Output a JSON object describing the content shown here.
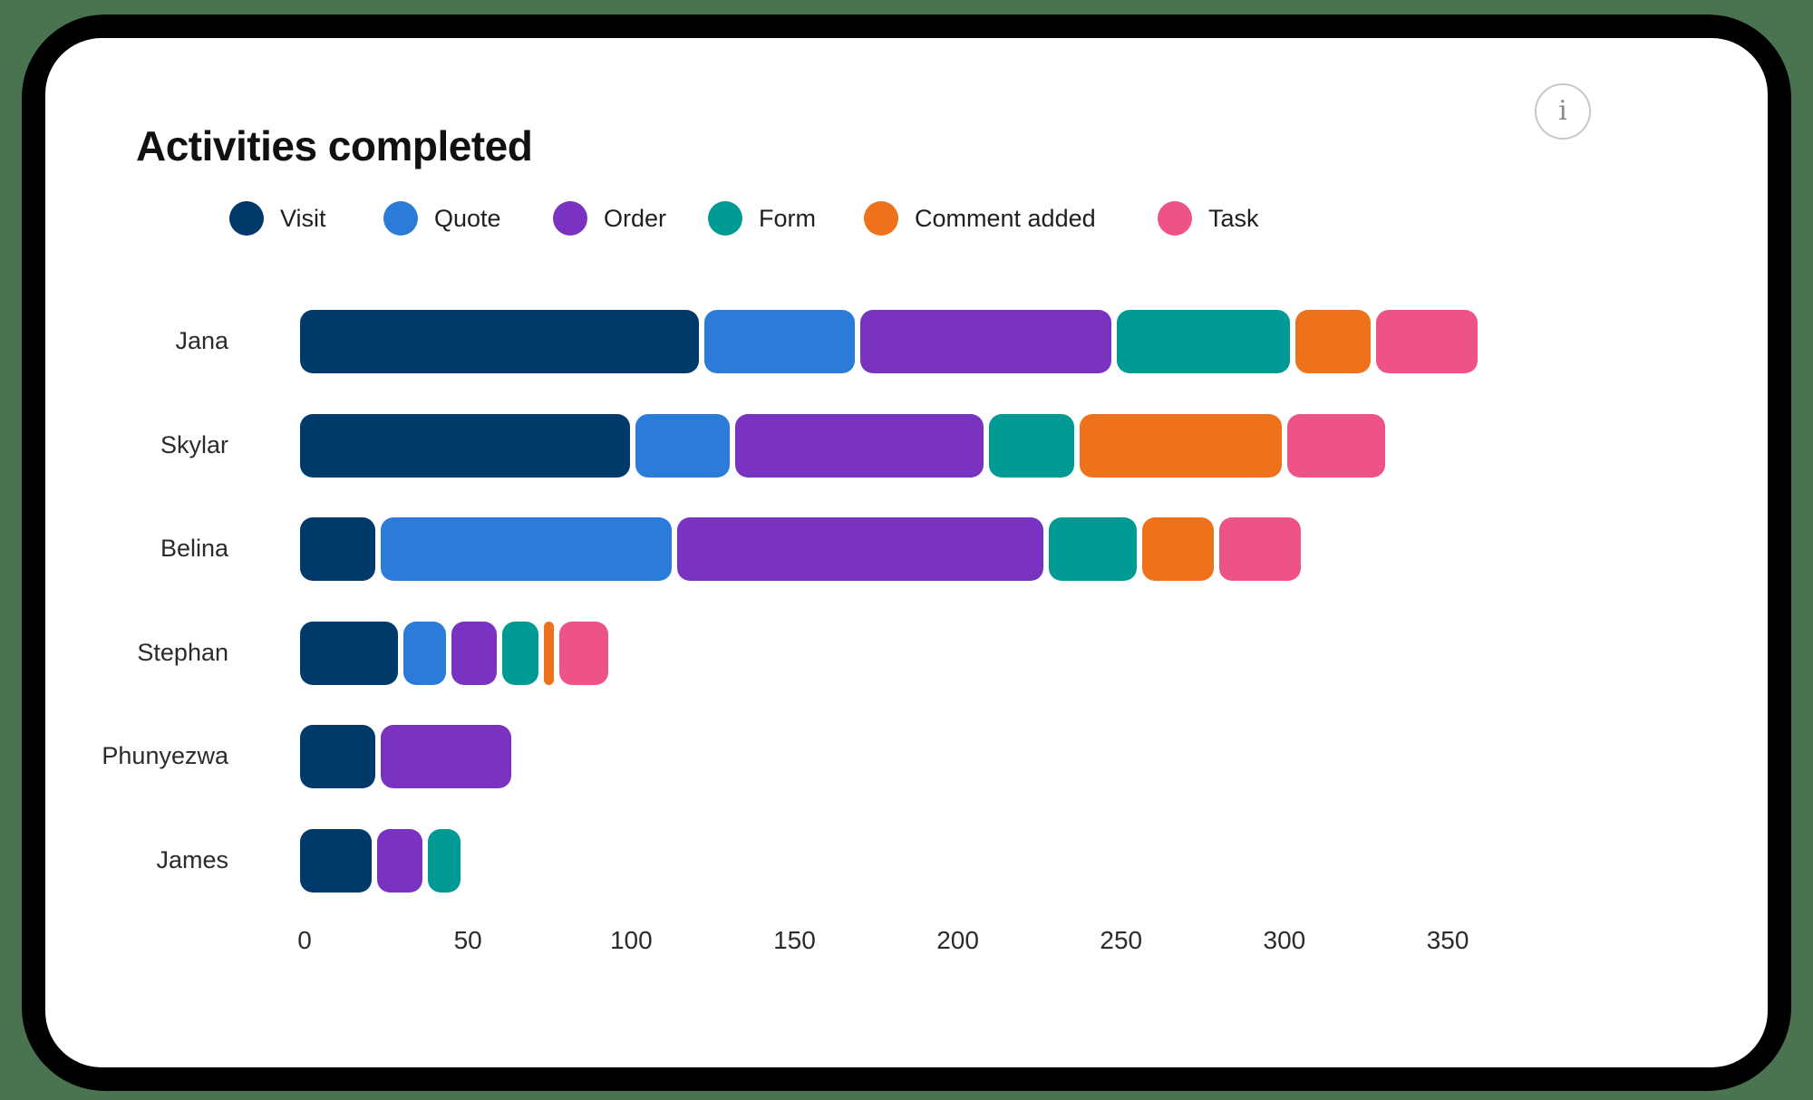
{
  "card": {
    "info_glyph": "i"
  },
  "chart_data": {
    "type": "bar",
    "orientation": "horizontal",
    "stacked": true,
    "title": "Activities completed",
    "categories": [
      "Jana",
      "Skylar",
      "Belina",
      "Stephan",
      "Phunyezwa",
      "James"
    ],
    "series": [
      {
        "name": "Visit",
        "color": "#003A6B",
        "values": [
          122,
          101,
          23,
          30,
          23,
          22
        ]
      },
      {
        "name": "Quote",
        "color": "#2B7CD9",
        "values": [
          46,
          29,
          89,
          13,
          0,
          0
        ]
      },
      {
        "name": "Order",
        "color": "#7A33C0",
        "values": [
          77,
          76,
          112,
          14,
          40,
          14
        ]
      },
      {
        "name": "Form",
        "color": "#009A95",
        "values": [
          53,
          26,
          27,
          11,
          0,
          10
        ]
      },
      {
        "name": "Comment added",
        "color": "#ED721B",
        "values": [
          23,
          62,
          22,
          3,
          0,
          0
        ]
      },
      {
        "name": "Task",
        "color": "#ED5289",
        "values": [
          31,
          30,
          25,
          15,
          0,
          0
        ]
      }
    ],
    "x_ticks": [
      0,
      50,
      100,
      150,
      200,
      250,
      300,
      350
    ],
    "xlim": [
      0,
      350
    ],
    "legend_position": "top",
    "grid": false,
    "accent_text_color": "#1f1f1f"
  }
}
